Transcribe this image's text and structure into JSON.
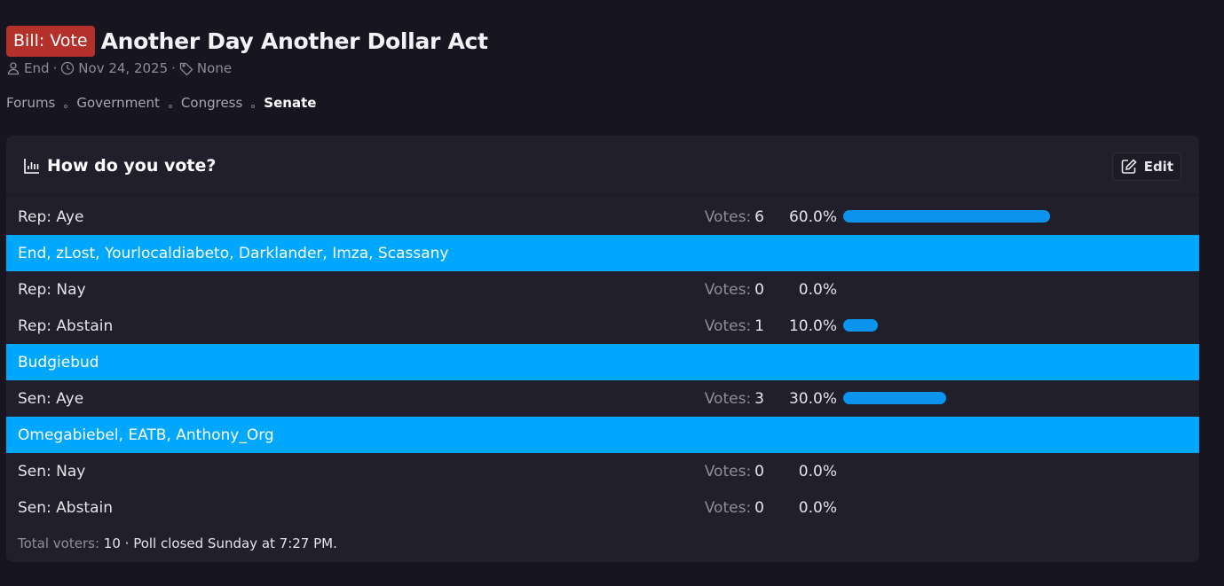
{
  "thread": {
    "prefix": "Bill: Vote",
    "title": "Another Day Another Dollar Act",
    "author": "End",
    "date": "Nov 24, 2025",
    "tags": "None"
  },
  "breadcrumb": [
    "Forums",
    "Government",
    "Congress",
    "Senate"
  ],
  "poll": {
    "title": "How do you vote?",
    "edit_label": "Edit",
    "votes_label": "Votes:",
    "responses": [
      {
        "label": "Rep: Aye",
        "votes": "6",
        "percent": "60.0%",
        "fraction": 0.6,
        "voters": "End, zLost, Yourlocaldiabeto, Darklander, Imza, Scassany"
      },
      {
        "label": "Rep: Nay",
        "votes": "0",
        "percent": "0.0%",
        "fraction": 0,
        "voters": ""
      },
      {
        "label": "Rep: Abstain",
        "votes": "1",
        "percent": "10.0%",
        "fraction": 0.1,
        "voters": "Budgiebud"
      },
      {
        "label": "Sen: Aye",
        "votes": "3",
        "percent": "30.0%",
        "fraction": 0.3,
        "voters": "Omegabiebel, EATB, Anthony_Org"
      },
      {
        "label": "Sen: Nay",
        "votes": "0",
        "percent": "0.0%",
        "fraction": 0,
        "voters": ""
      },
      {
        "label": "Sen: Abstain",
        "votes": "0",
        "percent": "0.0%",
        "fraction": 0,
        "voters": ""
      }
    ],
    "footer": {
      "total_label": "Total voters:",
      "total": "10",
      "closed": "Poll closed Sunday at 7:27 PM."
    }
  },
  "colors": {
    "prefix_bg": "#b3302b",
    "bar": "#0a94ee",
    "voters_bg": "#00a7ff"
  }
}
